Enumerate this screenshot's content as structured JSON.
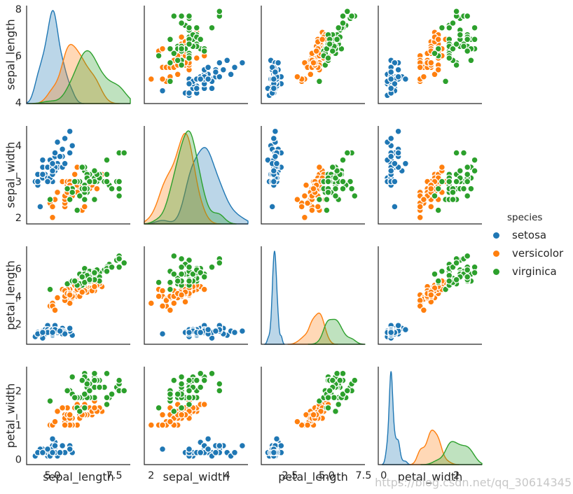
{
  "watermark": "https://blog.csdn.net/qq_30614345",
  "chart_data": {
    "type": "scatter",
    "subtype": "pairplot-scatter-matrix",
    "dataset": "iris",
    "diagonal": "kde",
    "grid": "off",
    "background": "#ffffff",
    "variables": [
      "sepal_length",
      "sepal_width",
      "petal_length",
      "petal_width"
    ],
    "axis_config": {
      "sepal_length": {
        "lim": [
          3.95,
          8.15
        ],
        "xticks": [
          "5.0",
          "7.5"
        ],
        "yticks": [
          "4",
          "6",
          "8"
        ]
      },
      "sepal_width": {
        "lim": [
          1.82,
          4.55
        ],
        "xticks": [
          "2",
          "4"
        ],
        "yticks": [
          "2",
          "3",
          "4"
        ]
      },
      "petal_length": {
        "lim": [
          0.55,
          7.6
        ],
        "xticks": [
          "2.5",
          "5.0",
          "7.5"
        ],
        "yticks": [
          "2",
          "4",
          "6"
        ]
      },
      "petal_width": {
        "lim": [
          -0.15,
          2.7
        ],
        "xticks": [
          "0",
          "2"
        ],
        "yticks": [
          "0",
          "1",
          "2"
        ]
      }
    },
    "legend": {
      "title": "species",
      "entries": [
        "setosa",
        "versicolor",
        "virginica"
      ],
      "position": "right"
    },
    "series": [
      {
        "name": "setosa",
        "color": "#1f77b4",
        "points": [
          [
            5.1,
            3.5,
            1.4,
            0.2
          ],
          [
            4.9,
            3.0,
            1.4,
            0.2
          ],
          [
            4.7,
            3.2,
            1.3,
            0.2
          ],
          [
            4.6,
            3.1,
            1.5,
            0.2
          ],
          [
            5.0,
            3.6,
            1.4,
            0.2
          ],
          [
            5.4,
            3.9,
            1.7,
            0.4
          ],
          [
            4.6,
            3.4,
            1.4,
            0.3
          ],
          [
            5.0,
            3.4,
            1.5,
            0.2
          ],
          [
            4.4,
            2.9,
            1.4,
            0.2
          ],
          [
            4.9,
            3.1,
            1.5,
            0.1
          ],
          [
            5.4,
            3.7,
            1.5,
            0.2
          ],
          [
            4.8,
            3.4,
            1.6,
            0.2
          ],
          [
            4.8,
            3.0,
            1.4,
            0.1
          ],
          [
            4.3,
            3.0,
            1.1,
            0.1
          ],
          [
            5.8,
            4.0,
            1.2,
            0.2
          ],
          [
            5.7,
            4.4,
            1.5,
            0.4
          ],
          [
            5.4,
            3.9,
            1.3,
            0.4
          ],
          [
            5.1,
            3.5,
            1.4,
            0.3
          ],
          [
            5.7,
            3.8,
            1.7,
            0.3
          ],
          [
            5.1,
            3.8,
            1.5,
            0.3
          ],
          [
            5.4,
            3.4,
            1.7,
            0.2
          ],
          [
            5.1,
            3.7,
            1.5,
            0.4
          ],
          [
            4.6,
            3.6,
            1.0,
            0.2
          ],
          [
            5.1,
            3.3,
            1.7,
            0.5
          ],
          [
            4.8,
            3.4,
            1.9,
            0.2
          ],
          [
            5.0,
            3.0,
            1.6,
            0.2
          ],
          [
            5.0,
            3.4,
            1.6,
            0.4
          ],
          [
            5.2,
            3.5,
            1.5,
            0.2
          ],
          [
            5.2,
            3.4,
            1.4,
            0.2
          ],
          [
            4.7,
            3.2,
            1.6,
            0.2
          ],
          [
            4.8,
            3.1,
            1.6,
            0.2
          ],
          [
            5.4,
            3.4,
            1.5,
            0.4
          ],
          [
            5.2,
            4.1,
            1.5,
            0.1
          ],
          [
            5.5,
            4.2,
            1.4,
            0.2
          ],
          [
            4.9,
            3.1,
            1.5,
            0.2
          ],
          [
            5.0,
            3.2,
            1.2,
            0.2
          ],
          [
            5.5,
            3.5,
            1.3,
            0.2
          ],
          [
            4.9,
            3.6,
            1.4,
            0.1
          ],
          [
            4.4,
            3.0,
            1.3,
            0.2
          ],
          [
            5.1,
            3.4,
            1.5,
            0.2
          ],
          [
            5.0,
            3.5,
            1.3,
            0.3
          ],
          [
            4.5,
            2.3,
            1.3,
            0.3
          ],
          [
            4.4,
            3.2,
            1.3,
            0.2
          ],
          [
            5.0,
            3.5,
            1.6,
            0.6
          ],
          [
            5.1,
            3.8,
            1.9,
            0.4
          ],
          [
            4.8,
            3.0,
            1.4,
            0.3
          ],
          [
            5.1,
            3.8,
            1.6,
            0.2
          ],
          [
            4.6,
            3.2,
            1.4,
            0.2
          ],
          [
            5.3,
            3.7,
            1.5,
            0.2
          ],
          [
            5.0,
            3.3,
            1.4,
            0.2
          ]
        ]
      },
      {
        "name": "versicolor",
        "color": "#ff7f0e",
        "points": [
          [
            7.0,
            3.2,
            4.7,
            1.4
          ],
          [
            6.4,
            3.2,
            4.5,
            1.5
          ],
          [
            6.9,
            3.1,
            4.9,
            1.5
          ],
          [
            5.5,
            2.3,
            4.0,
            1.3
          ],
          [
            6.5,
            2.8,
            4.6,
            1.5
          ],
          [
            5.7,
            2.8,
            4.5,
            1.3
          ],
          [
            6.3,
            3.3,
            4.7,
            1.6
          ],
          [
            4.9,
            2.4,
            3.3,
            1.0
          ],
          [
            6.6,
            2.9,
            4.6,
            1.3
          ],
          [
            5.2,
            2.7,
            3.9,
            1.4
          ],
          [
            5.0,
            2.0,
            3.5,
            1.0
          ],
          [
            5.9,
            3.0,
            4.2,
            1.5
          ],
          [
            6.0,
            2.2,
            4.0,
            1.0
          ],
          [
            6.1,
            2.9,
            4.7,
            1.4
          ],
          [
            5.6,
            2.9,
            3.6,
            1.3
          ],
          [
            6.7,
            3.1,
            4.4,
            1.4
          ],
          [
            5.6,
            3.0,
            4.5,
            1.5
          ],
          [
            5.8,
            2.7,
            4.1,
            1.0
          ],
          [
            6.2,
            2.2,
            4.5,
            1.5
          ],
          [
            5.6,
            2.5,
            3.9,
            1.1
          ],
          [
            5.9,
            3.2,
            4.8,
            1.8
          ],
          [
            6.1,
            2.8,
            4.0,
            1.3
          ],
          [
            6.3,
            2.5,
            4.9,
            1.5
          ],
          [
            6.1,
            2.8,
            4.7,
            1.2
          ],
          [
            6.4,
            2.9,
            4.3,
            1.3
          ],
          [
            6.6,
            3.0,
            4.4,
            1.4
          ],
          [
            6.8,
            2.8,
            4.8,
            1.4
          ],
          [
            6.7,
            3.0,
            5.0,
            1.7
          ],
          [
            6.0,
            2.9,
            4.5,
            1.5
          ],
          [
            5.7,
            2.6,
            3.5,
            1.0
          ],
          [
            5.5,
            2.4,
            3.8,
            1.1
          ],
          [
            5.5,
            2.4,
            3.7,
            1.0
          ],
          [
            5.8,
            2.7,
            3.9,
            1.2
          ],
          [
            6.0,
            2.7,
            5.1,
            1.6
          ],
          [
            5.4,
            3.0,
            4.5,
            1.5
          ],
          [
            6.0,
            3.4,
            4.5,
            1.6
          ],
          [
            6.7,
            3.1,
            4.7,
            1.5
          ],
          [
            6.3,
            2.3,
            4.4,
            1.3
          ],
          [
            5.6,
            3.0,
            4.1,
            1.3
          ],
          [
            5.5,
            2.5,
            4.0,
            1.3
          ],
          [
            5.5,
            2.6,
            4.4,
            1.2
          ],
          [
            6.1,
            3.0,
            4.6,
            1.4
          ],
          [
            5.8,
            2.6,
            4.0,
            1.2
          ],
          [
            5.0,
            2.3,
            3.3,
            1.0
          ],
          [
            5.6,
            2.7,
            4.2,
            1.3
          ],
          [
            5.7,
            3.0,
            4.2,
            1.2
          ],
          [
            5.7,
            2.9,
            4.2,
            1.3
          ],
          [
            6.2,
            2.9,
            4.3,
            1.3
          ],
          [
            5.1,
            2.5,
            3.0,
            1.1
          ],
          [
            5.7,
            2.8,
            4.1,
            1.3
          ]
        ]
      },
      {
        "name": "virginica",
        "color": "#2ca02c",
        "points": [
          [
            6.3,
            3.3,
            6.0,
            2.5
          ],
          [
            5.8,
            2.7,
            5.1,
            1.9
          ],
          [
            7.1,
            3.0,
            5.9,
            2.1
          ],
          [
            6.3,
            2.9,
            5.6,
            1.8
          ],
          [
            6.5,
            3.0,
            5.8,
            2.2
          ],
          [
            7.6,
            3.0,
            6.6,
            2.1
          ],
          [
            4.9,
            2.5,
            4.5,
            1.7
          ],
          [
            7.3,
            2.9,
            6.3,
            1.8
          ],
          [
            6.7,
            2.5,
            5.8,
            1.8
          ],
          [
            7.2,
            3.6,
            6.1,
            2.5
          ],
          [
            6.5,
            3.2,
            5.1,
            2.0
          ],
          [
            6.4,
            2.7,
            5.3,
            1.9
          ],
          [
            6.8,
            3.0,
            5.5,
            2.1
          ],
          [
            5.7,
            2.5,
            5.0,
            2.0
          ],
          [
            5.8,
            2.8,
            5.1,
            2.4
          ],
          [
            6.4,
            3.2,
            5.3,
            2.3
          ],
          [
            6.5,
            3.0,
            5.5,
            1.8
          ],
          [
            7.7,
            3.8,
            6.7,
            2.2
          ],
          [
            7.7,
            2.6,
            6.9,
            2.3
          ],
          [
            6.0,
            2.2,
            5.0,
            1.5
          ],
          [
            6.9,
            3.2,
            5.7,
            2.3
          ],
          [
            5.6,
            2.8,
            4.9,
            2.0
          ],
          [
            7.7,
            2.8,
            6.7,
            2.0
          ],
          [
            6.3,
            2.7,
            4.9,
            1.8
          ],
          [
            6.7,
            3.3,
            5.7,
            2.1
          ],
          [
            7.2,
            3.2,
            6.0,
            1.8
          ],
          [
            6.2,
            2.8,
            4.8,
            1.8
          ],
          [
            6.1,
            3.0,
            4.9,
            1.8
          ],
          [
            6.4,
            2.8,
            5.6,
            2.1
          ],
          [
            7.2,
            3.0,
            5.8,
            1.6
          ],
          [
            7.4,
            2.8,
            6.1,
            1.9
          ],
          [
            7.9,
            3.8,
            6.4,
            2.0
          ],
          [
            6.4,
            2.8,
            5.6,
            2.2
          ],
          [
            6.3,
            2.8,
            5.1,
            1.5
          ],
          [
            6.1,
            2.6,
            5.6,
            1.4
          ],
          [
            7.7,
            3.0,
            6.1,
            2.3
          ],
          [
            6.3,
            3.4,
            5.6,
            2.4
          ],
          [
            6.4,
            3.1,
            5.5,
            1.8
          ],
          [
            6.0,
            3.0,
            4.8,
            1.8
          ],
          [
            6.9,
            3.1,
            5.4,
            2.1
          ],
          [
            6.7,
            3.1,
            5.6,
            2.4
          ],
          [
            6.9,
            3.1,
            5.1,
            2.3
          ],
          [
            5.8,
            2.7,
            5.1,
            1.9
          ],
          [
            6.8,
            3.2,
            5.9,
            2.3
          ],
          [
            6.7,
            3.3,
            5.7,
            2.5
          ],
          [
            6.7,
            3.0,
            5.2,
            2.3
          ],
          [
            6.3,
            2.5,
            5.0,
            1.9
          ],
          [
            6.5,
            3.0,
            5.2,
            2.0
          ],
          [
            6.2,
            3.4,
            5.4,
            2.3
          ],
          [
            5.9,
            3.0,
            5.1,
            1.8
          ]
        ]
      }
    ]
  }
}
